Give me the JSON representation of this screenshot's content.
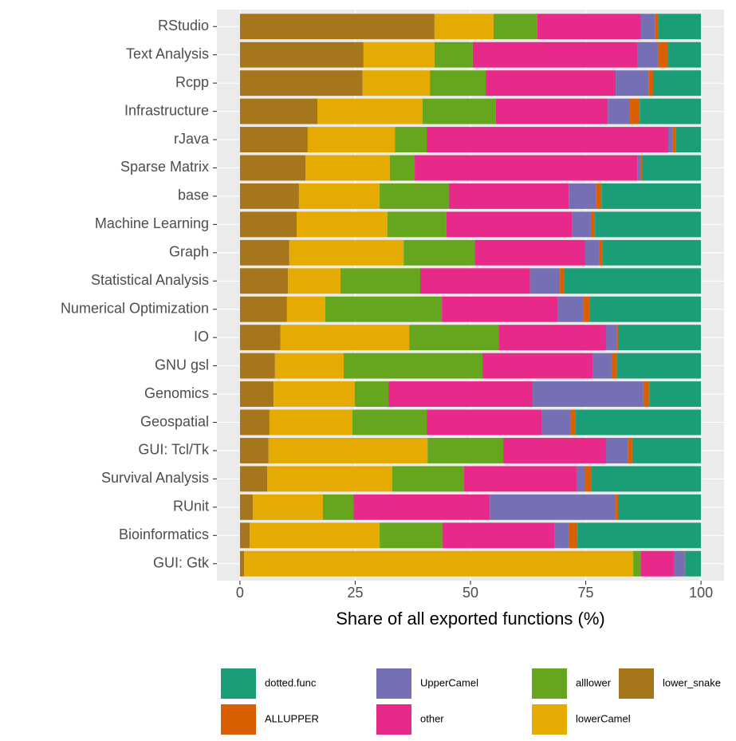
{
  "chart_data": {
    "type": "stacked_bar_horizontal",
    "x_label": "Share of all exported functions (%)",
    "categories": [
      "RStudio",
      "Text Analysis",
      "Rcpp",
      "Infrastructure",
      "rJava",
      "Sparse Matrix",
      "base",
      "Machine Learning",
      "Graph",
      "Statistical Analysis",
      "Numerical Optimization",
      "IO",
      "GNU gsl",
      "Genomics",
      "Geospatial",
      "GUI: Tcl/Tk",
      "Survival Analysis",
      "RUnit",
      "Bioinformatics",
      "GUI: Gtk"
    ],
    "series": [
      {
        "name": "dotted.func",
        "color": "#1b9e77",
        "values": [
          9.3,
          7.1,
          10.4,
          13.3,
          5.5,
          12.8,
          21.6,
          23.0,
          21.3,
          29.6,
          24.2,
          18.0,
          18.3,
          11.2,
          27.3,
          14.9,
          23.7,
          18.0,
          26.8,
          3.3
        ]
      },
      {
        "name": "ALLUPPER",
        "color": "#d95f02",
        "values": [
          0.6,
          2.1,
          1.0,
          2.1,
          0.6,
          0.2,
          1.1,
          0.9,
          0.7,
          1.0,
          1.4,
          0.3,
          1.1,
          1.3,
          0.9,
          1.0,
          1.4,
          0.5,
          1.9,
          0.2
        ]
      },
      {
        "name": "UpperCamel",
        "color": "#7570b3",
        "values": [
          3.1,
          4.5,
          7.1,
          4.8,
          1.0,
          0.8,
          6.0,
          4.0,
          3.1,
          6.5,
          5.4,
          2.3,
          4.0,
          24.0,
          6.4,
          4.7,
          1.9,
          27.3,
          3.0,
          2.4
        ]
      },
      {
        "name": "other",
        "color": "#e7298a",
        "values": [
          22.5,
          35.8,
          28.2,
          24.3,
          52.4,
          48.3,
          26.0,
          27.3,
          24.0,
          23.8,
          25.2,
          23.3,
          24.0,
          31.3,
          24.9,
          22.3,
          24.4,
          29.6,
          24.4,
          7.2
        ]
      },
      {
        "name": "alllower",
        "color": "#66a61e",
        "values": [
          9.5,
          8.3,
          12.1,
          15.9,
          6.9,
          5.4,
          15.0,
          12.8,
          15.4,
          17.3,
          25.3,
          19.4,
          30.1,
          7.3,
          16.1,
          16.4,
          15.6,
          6.6,
          13.6,
          1.6
        ]
      },
      {
        "name": "lowerCamel",
        "color": "#e6ab02",
        "values": [
          12.8,
          15.4,
          14.6,
          22.8,
          18.9,
          18.3,
          17.5,
          19.7,
          24.8,
          11.4,
          8.3,
          27.9,
          14.9,
          17.6,
          18.0,
          34.5,
          27.1,
          15.2,
          28.2,
          84.4
        ]
      },
      {
        "name": "lower_snake",
        "color": "#a6761d",
        "values": [
          42.2,
          26.8,
          26.6,
          16.8,
          14.7,
          14.2,
          12.8,
          12.3,
          10.7,
          10.4,
          10.2,
          8.8,
          7.6,
          7.3,
          6.4,
          6.2,
          5.9,
          2.8,
          2.1,
          0.9
        ]
      }
    ],
    "xlim": [
      -5,
      105
    ],
    "xticks": [
      0,
      25,
      50,
      75,
      100
    ],
    "grid": true,
    "legend": "bottom"
  }
}
